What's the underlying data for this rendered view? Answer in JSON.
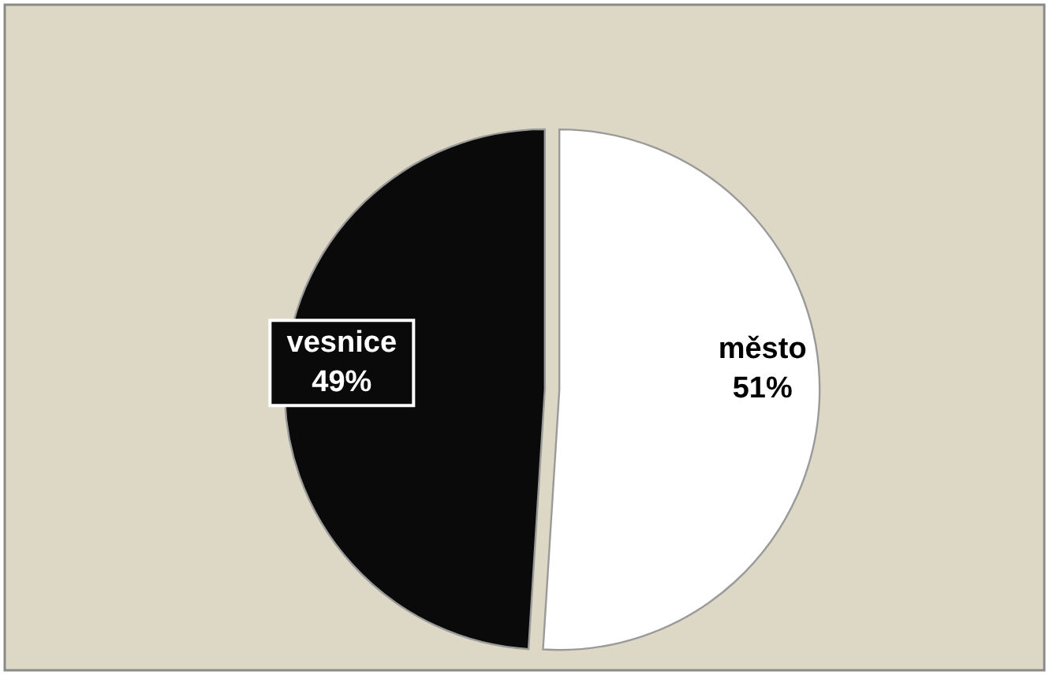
{
  "chart_data": {
    "type": "pie",
    "categories": [
      "město",
      "vesnice"
    ],
    "values": [
      51,
      49
    ],
    "colors": [
      "#ffffff",
      "#0a0a0a"
    ],
    "value_labels": [
      "51%",
      "49%"
    ]
  }
}
